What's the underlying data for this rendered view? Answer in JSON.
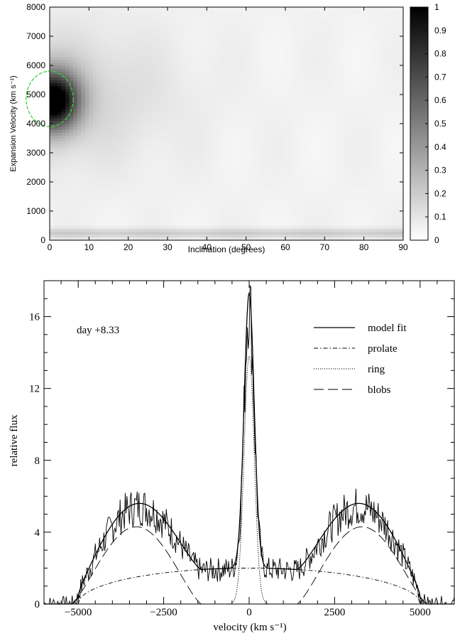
{
  "chart_data": [
    {
      "type": "heatmap",
      "xlabel": "Inclination (degrees)",
      "ylabel": "Expansion Velocity (km s⁻¹)",
      "xlim": [
        0,
        90
      ],
      "ylim": [
        0,
        8000
      ],
      "x_ticks": [
        "0",
        "10",
        "20",
        "30",
        "40",
        "50",
        "60",
        "70",
        "80",
        "90"
      ],
      "y_ticks": [
        "0",
        "1000",
        "2000",
        "3000",
        "4000",
        "5000",
        "6000",
        "7000",
        "8000"
      ],
      "colorbar": {
        "range": [
          0,
          1
        ],
        "ticks": [
          "0",
          "0.1",
          "0.2",
          "0.3",
          "0.4",
          "0.5",
          "0.6",
          "0.7",
          "0.8",
          "0.9",
          "1"
        ],
        "colormap": "white-to-black"
      },
      "peak": {
        "inclination": 1,
        "velocity": 4800,
        "value": 1.0
      },
      "low_velocity_band": {
        "velocity_range": [
          100,
          400
        ],
        "value": 0.15
      },
      "contour": {
        "color": "#3ad13a",
        "center": [
          0,
          4850
        ],
        "inclination_radius": 6,
        "velocity_radius": 950
      }
    },
    {
      "type": "line",
      "annotation": "day +8.33",
      "xlabel": "velocity (km s⁻¹)",
      "ylabel": "relative flux",
      "xlim": [
        -6000,
        6000
      ],
      "ylim": [
        0,
        18
      ],
      "x_ticks": [
        "−5000",
        "−2500",
        "0",
        "2500",
        "5000"
      ],
      "x_tick_values": [
        -5000,
        -2500,
        0,
        2500,
        5000
      ],
      "y_ticks": [
        "0",
        "4",
        "8",
        "12",
        "16"
      ],
      "y_tick_values": [
        0,
        4,
        8,
        12,
        16
      ],
      "legend_position": "top-right",
      "series": [
        {
          "name": "model fit",
          "style": "solid"
        },
        {
          "name": "prolate",
          "style": "dash-dot"
        },
        {
          "name": "ring",
          "style": "dotted"
        },
        {
          "name": "blobs",
          "style": "long-dash"
        }
      ],
      "observed_spectrum": "noisy, tracks model fit",
      "components": {
        "prolate": {
          "center": 0,
          "halfwidth": 5000,
          "peak": 2.0
        },
        "ring": {
          "center": 0,
          "sigma": 150,
          "peak": 13.8
        },
        "blobs": {
          "centers": [
            -3300,
            3300
          ],
          "peak": 4.3,
          "halfwidth": 1900
        },
        "continuum": 0
      }
    }
  ]
}
